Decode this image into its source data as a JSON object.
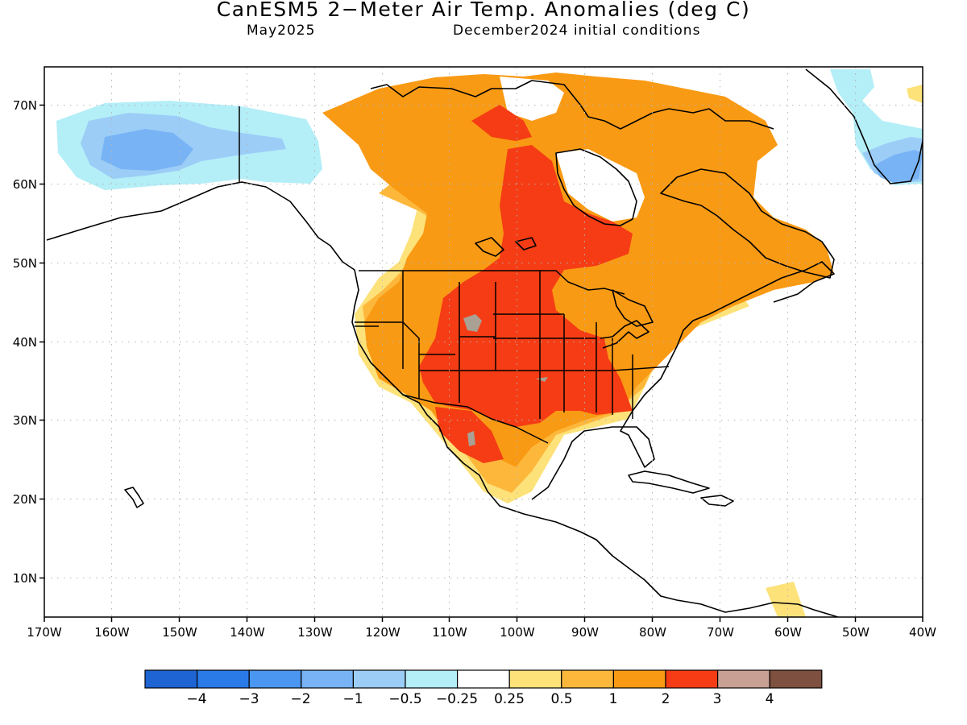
{
  "header": {
    "title": "CanESM5 2−Meter Air Temp. Anomalies (deg C)",
    "valid_month": "May2025",
    "initial_conditions": "December2024 initial conditions"
  },
  "map": {
    "lat_labels": [
      "70N",
      "60N",
      "50N",
      "40N",
      "30N",
      "20N",
      "10N"
    ],
    "lon_labels": [
      "170W",
      "160W",
      "150W",
      "140W",
      "130W",
      "120W",
      "110W",
      "100W",
      "90W",
      "80W",
      "70W",
      "60W",
      "50W",
      "40W"
    ],
    "lon_range": [
      -170,
      -40
    ],
    "lat_range": [
      5,
      75
    ]
  },
  "colorbar": {
    "colors": [
      "#1e64d2",
      "#2a7ae8",
      "#4a96f0",
      "#78b4f5",
      "#9ccdf7",
      "#b4eef7",
      "#ffffff",
      "#fde27a",
      "#fdb83c",
      "#f99a14",
      "#f53c14",
      "#c8a094",
      "#7e5040"
    ],
    "labels": [
      "−4",
      "−3",
      "−2",
      "−1",
      "−0.5",
      "−0.25",
      "0.25",
      "0.5",
      "1",
      "2",
      "3",
      "4"
    ]
  }
}
